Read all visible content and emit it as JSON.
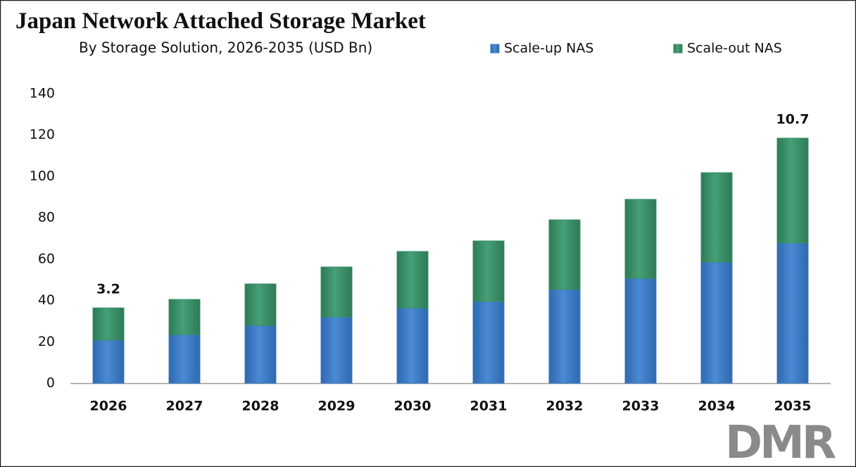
{
  "chart_data": {
    "type": "stacked_bar",
    "title": "Japan Network Attached Storage Market",
    "subtitle": "By Storage Solution, 2026-2035 (USD Bn)",
    "categories": [
      "2026",
      "2027",
      "2028",
      "2029",
      "2030",
      "2031",
      "2032",
      "2033",
      "2034",
      "2035"
    ],
    "series": [
      {
        "name": "Scale-up NAS",
        "color": "#3b7bc8",
        "values": [
          20.8,
          23.5,
          27.9,
          32,
          36.4,
          39.5,
          45.3,
          50.7,
          58.6,
          67.8
        ]
      },
      {
        "name": "Scale-out NAS",
        "color": "#3a9068",
        "values": [
          15.6,
          17,
          20.1,
          24.2,
          27.3,
          29.3,
          33.7,
          38.2,
          43.2,
          50.7
        ]
      }
    ],
    "annotations": [
      {
        "x": "2026",
        "text": "3.2"
      },
      {
        "x": "2035",
        "text": "10.7"
      }
    ],
    "ylim": [
      0,
      140
    ],
    "yticks": [
      0,
      20,
      40,
      60,
      80,
      100,
      120,
      140
    ],
    "grid": false,
    "legend": "top-right",
    "logo": "DMR"
  }
}
